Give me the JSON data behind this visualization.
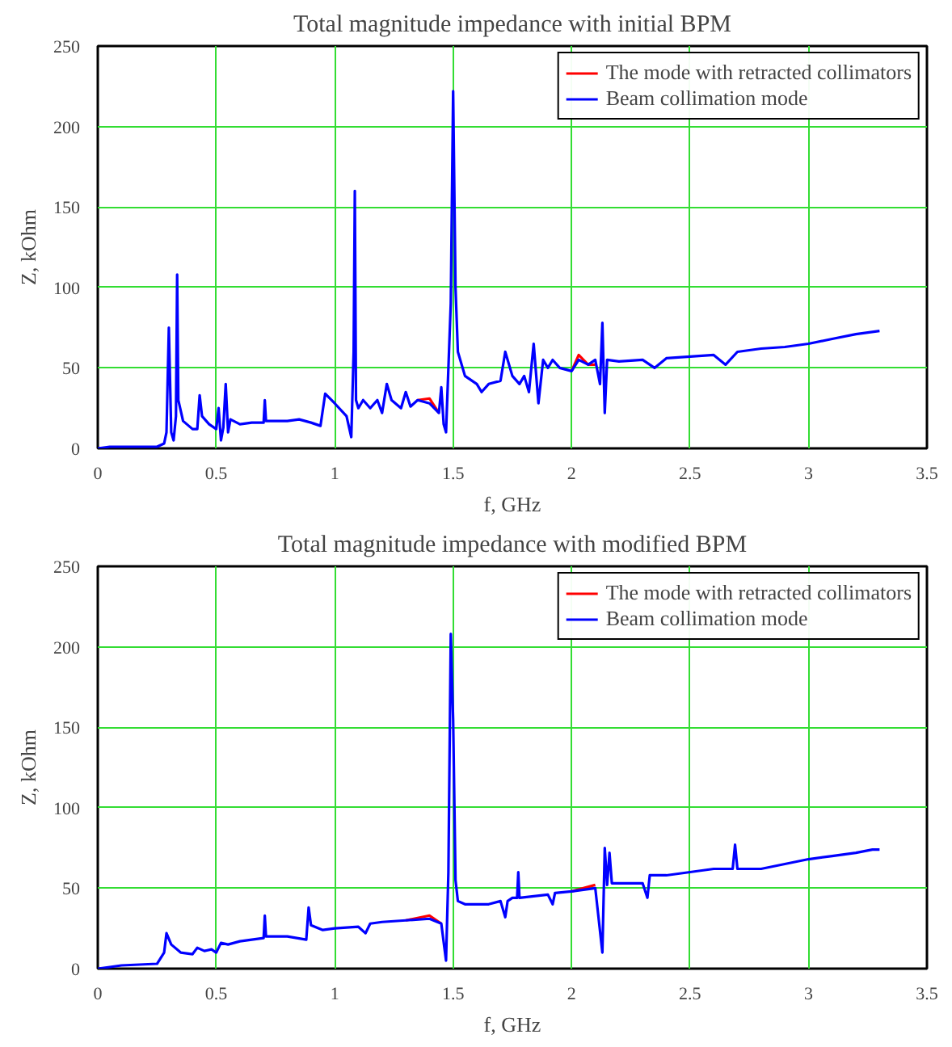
{
  "chart_data": [
    {
      "type": "line",
      "title": "Total magnitude impedance with initial BPM",
      "xlabel": "f, GHz",
      "ylabel": "Z, kOhm",
      "xlim": [
        0,
        3.5
      ],
      "ylim": [
        0,
        250
      ],
      "xticks": [
        0,
        0.5,
        1,
        1.5,
        2,
        2.5,
        3,
        3.5
      ],
      "yticks": [
        0,
        50,
        100,
        150,
        200,
        250
      ],
      "grid": true,
      "legend": "top right",
      "x": [
        0,
        0.05,
        0.25,
        0.28,
        0.29,
        0.3,
        0.31,
        0.32,
        0.33,
        0.335,
        0.34,
        0.36,
        0.4,
        0.42,
        0.43,
        0.44,
        0.47,
        0.5,
        0.51,
        0.52,
        0.53,
        0.54,
        0.55,
        0.56,
        0.6,
        0.65,
        0.7,
        0.705,
        0.71,
        0.8,
        0.85,
        0.9,
        0.94,
        0.96,
        1.0,
        1.05,
        1.07,
        1.08,
        1.085,
        1.09,
        1.1,
        1.12,
        1.15,
        1.18,
        1.2,
        1.22,
        1.24,
        1.28,
        1.3,
        1.32,
        1.35,
        1.4,
        1.44,
        1.45,
        1.46,
        1.47,
        1.49,
        1.5,
        1.51,
        1.52,
        1.55,
        1.6,
        1.62,
        1.65,
        1.7,
        1.72,
        1.75,
        1.78,
        1.8,
        1.82,
        1.84,
        1.86,
        1.88,
        1.9,
        1.92,
        1.95,
        2.0,
        2.03,
        2.07,
        2.1,
        2.12,
        2.13,
        2.14,
        2.15,
        2.2,
        2.3,
        2.35,
        2.4,
        2.5,
        2.6,
        2.65,
        2.7,
        2.8,
        2.9,
        3.0,
        3.1,
        3.2,
        3.3
      ],
      "series": [
        {
          "name": "The mode with retracted collimators",
          "color": "#ff0000",
          "x": [
            1.35,
            1.4,
            1.44,
            1.45,
            2.0,
            2.03,
            2.07,
            2.1
          ],
          "values": [
            30,
            31,
            22,
            null,
            48,
            58,
            52,
            52
          ]
        },
        {
          "name": "Beam collimation mode",
          "color": "#0000ff",
          "values": [
            0,
            1,
            1,
            3,
            10,
            75,
            10,
            5,
            20,
            108,
            30,
            17,
            12,
            12,
            33,
            20,
            15,
            12,
            25,
            5,
            13,
            40,
            10,
            18,
            15,
            16,
            16,
            30,
            17,
            17,
            18,
            16,
            14,
            34,
            28,
            20,
            7,
            60,
            160,
            30,
            25,
            30,
            25,
            30,
            22,
            40,
            30,
            25,
            35,
            26,
            30,
            28,
            22,
            38,
            15,
            10,
            90,
            222,
            100,
            60,
            45,
            40,
            35,
            40,
            42,
            60,
            45,
            40,
            45,
            35,
            65,
            28,
            55,
            50,
            55,
            50,
            48,
            55,
            52,
            55,
            40,
            78,
            22,
            55,
            54,
            55,
            50,
            56,
            57,
            58,
            52,
            60,
            62,
            63,
            65,
            68,
            71,
            73
          ]
        }
      ]
    },
    {
      "type": "line",
      "title": "Total magnitude impedance with modified BPM",
      "xlabel": "f, GHz",
      "ylabel": "Z, kOhm",
      "xlim": [
        0,
        3.5
      ],
      "ylim": [
        0,
        250
      ],
      "xticks": [
        0,
        0.5,
        1,
        1.5,
        2,
        2.5,
        3,
        3.5
      ],
      "yticks": [
        0,
        50,
        100,
        150,
        200,
        250
      ],
      "grid": true,
      "legend": "top right",
      "x": [
        0,
        0.1,
        0.25,
        0.28,
        0.29,
        0.31,
        0.35,
        0.4,
        0.42,
        0.45,
        0.48,
        0.5,
        0.52,
        0.55,
        0.6,
        0.65,
        0.7,
        0.705,
        0.71,
        0.8,
        0.88,
        0.89,
        0.9,
        0.95,
        1.0,
        1.1,
        1.13,
        1.15,
        1.2,
        1.3,
        1.4,
        1.45,
        1.47,
        1.48,
        1.49,
        1.5,
        1.51,
        1.52,
        1.55,
        1.65,
        1.7,
        1.72,
        1.73,
        1.75,
        1.77,
        1.775,
        1.78,
        1.9,
        1.92,
        1.93,
        2.0,
        2.1,
        2.13,
        2.14,
        2.15,
        2.16,
        2.17,
        2.3,
        2.32,
        2.33,
        2.4,
        2.5,
        2.6,
        2.68,
        2.69,
        2.7,
        2.8,
        2.9,
        3.0,
        3.1,
        3.2,
        3.27,
        3.3
      ],
      "series": [
        {
          "name": "The mode with retracted collimators",
          "color": "#ff0000",
          "x": [
            1.3,
            1.4,
            1.45,
            1.5,
            2.0,
            2.1
          ],
          "values": [
            30,
            33,
            28,
            null,
            48,
            52
          ]
        },
        {
          "name": "Beam collimation mode",
          "color": "#0000ff",
          "values": [
            0,
            2,
            3,
            10,
            22,
            15,
            10,
            9,
            13,
            11,
            12,
            10,
            16,
            15,
            17,
            18,
            19,
            33,
            20,
            20,
            18,
            38,
            27,
            24,
            25,
            26,
            22,
            28,
            29,
            30,
            31,
            28,
            5,
            60,
            208,
            155,
            55,
            42,
            40,
            40,
            42,
            32,
            42,
            44,
            44,
            60,
            44,
            46,
            40,
            47,
            48,
            50,
            10,
            75,
            52,
            72,
            53,
            53,
            44,
            58,
            58,
            60,
            62,
            62,
            77,
            62,
            62,
            65,
            68,
            70,
            72,
            74,
            74
          ]
        }
      ]
    }
  ]
}
